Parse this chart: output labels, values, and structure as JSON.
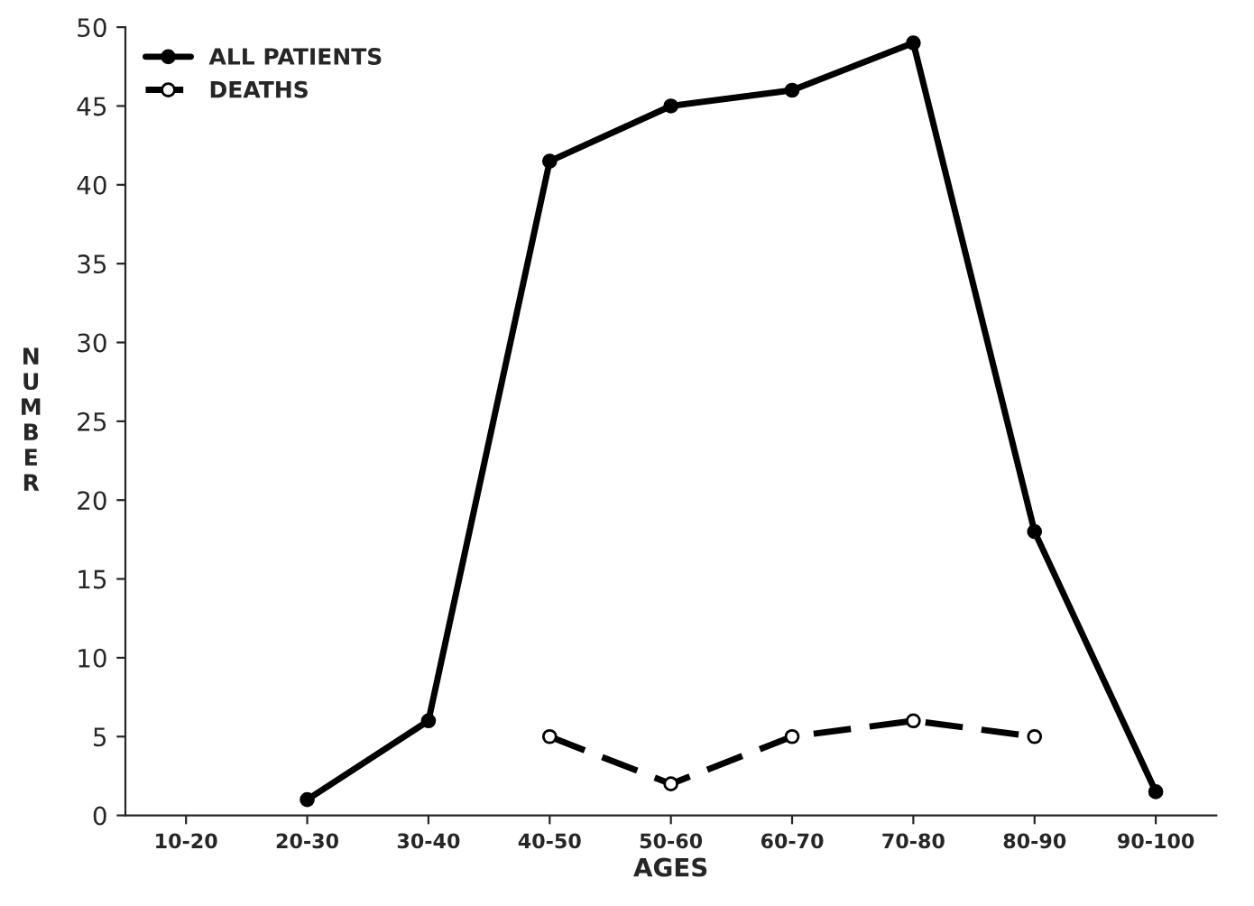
{
  "chart_data": {
    "type": "line",
    "xlabel": "AGES",
    "ylabel": "NUMBER",
    "categories": [
      "10-20",
      "20-30",
      "30-40",
      "40-50",
      "50-60",
      "60-70",
      "70-80",
      "80-90",
      "90-100"
    ],
    "series": [
      {
        "name": "ALL PATIENTS",
        "color": "#000000",
        "values": [
          null,
          1,
          6,
          41.5,
          45,
          46,
          49,
          18,
          1.5
        ],
        "marker": "circle",
        "line_style": "solid"
      },
      {
        "name": "DEATHS",
        "color": "#000000",
        "values": [
          null,
          null,
          null,
          5,
          2,
          5,
          6,
          5,
          null
        ],
        "marker": "circle",
        "line_style": "dashed"
      }
    ],
    "ylim": [
      0,
      50
    ],
    "yticks": [
      0,
      5,
      10,
      15,
      20,
      25,
      30,
      35,
      40,
      45,
      50
    ],
    "grid": false,
    "legend": "top left"
  }
}
